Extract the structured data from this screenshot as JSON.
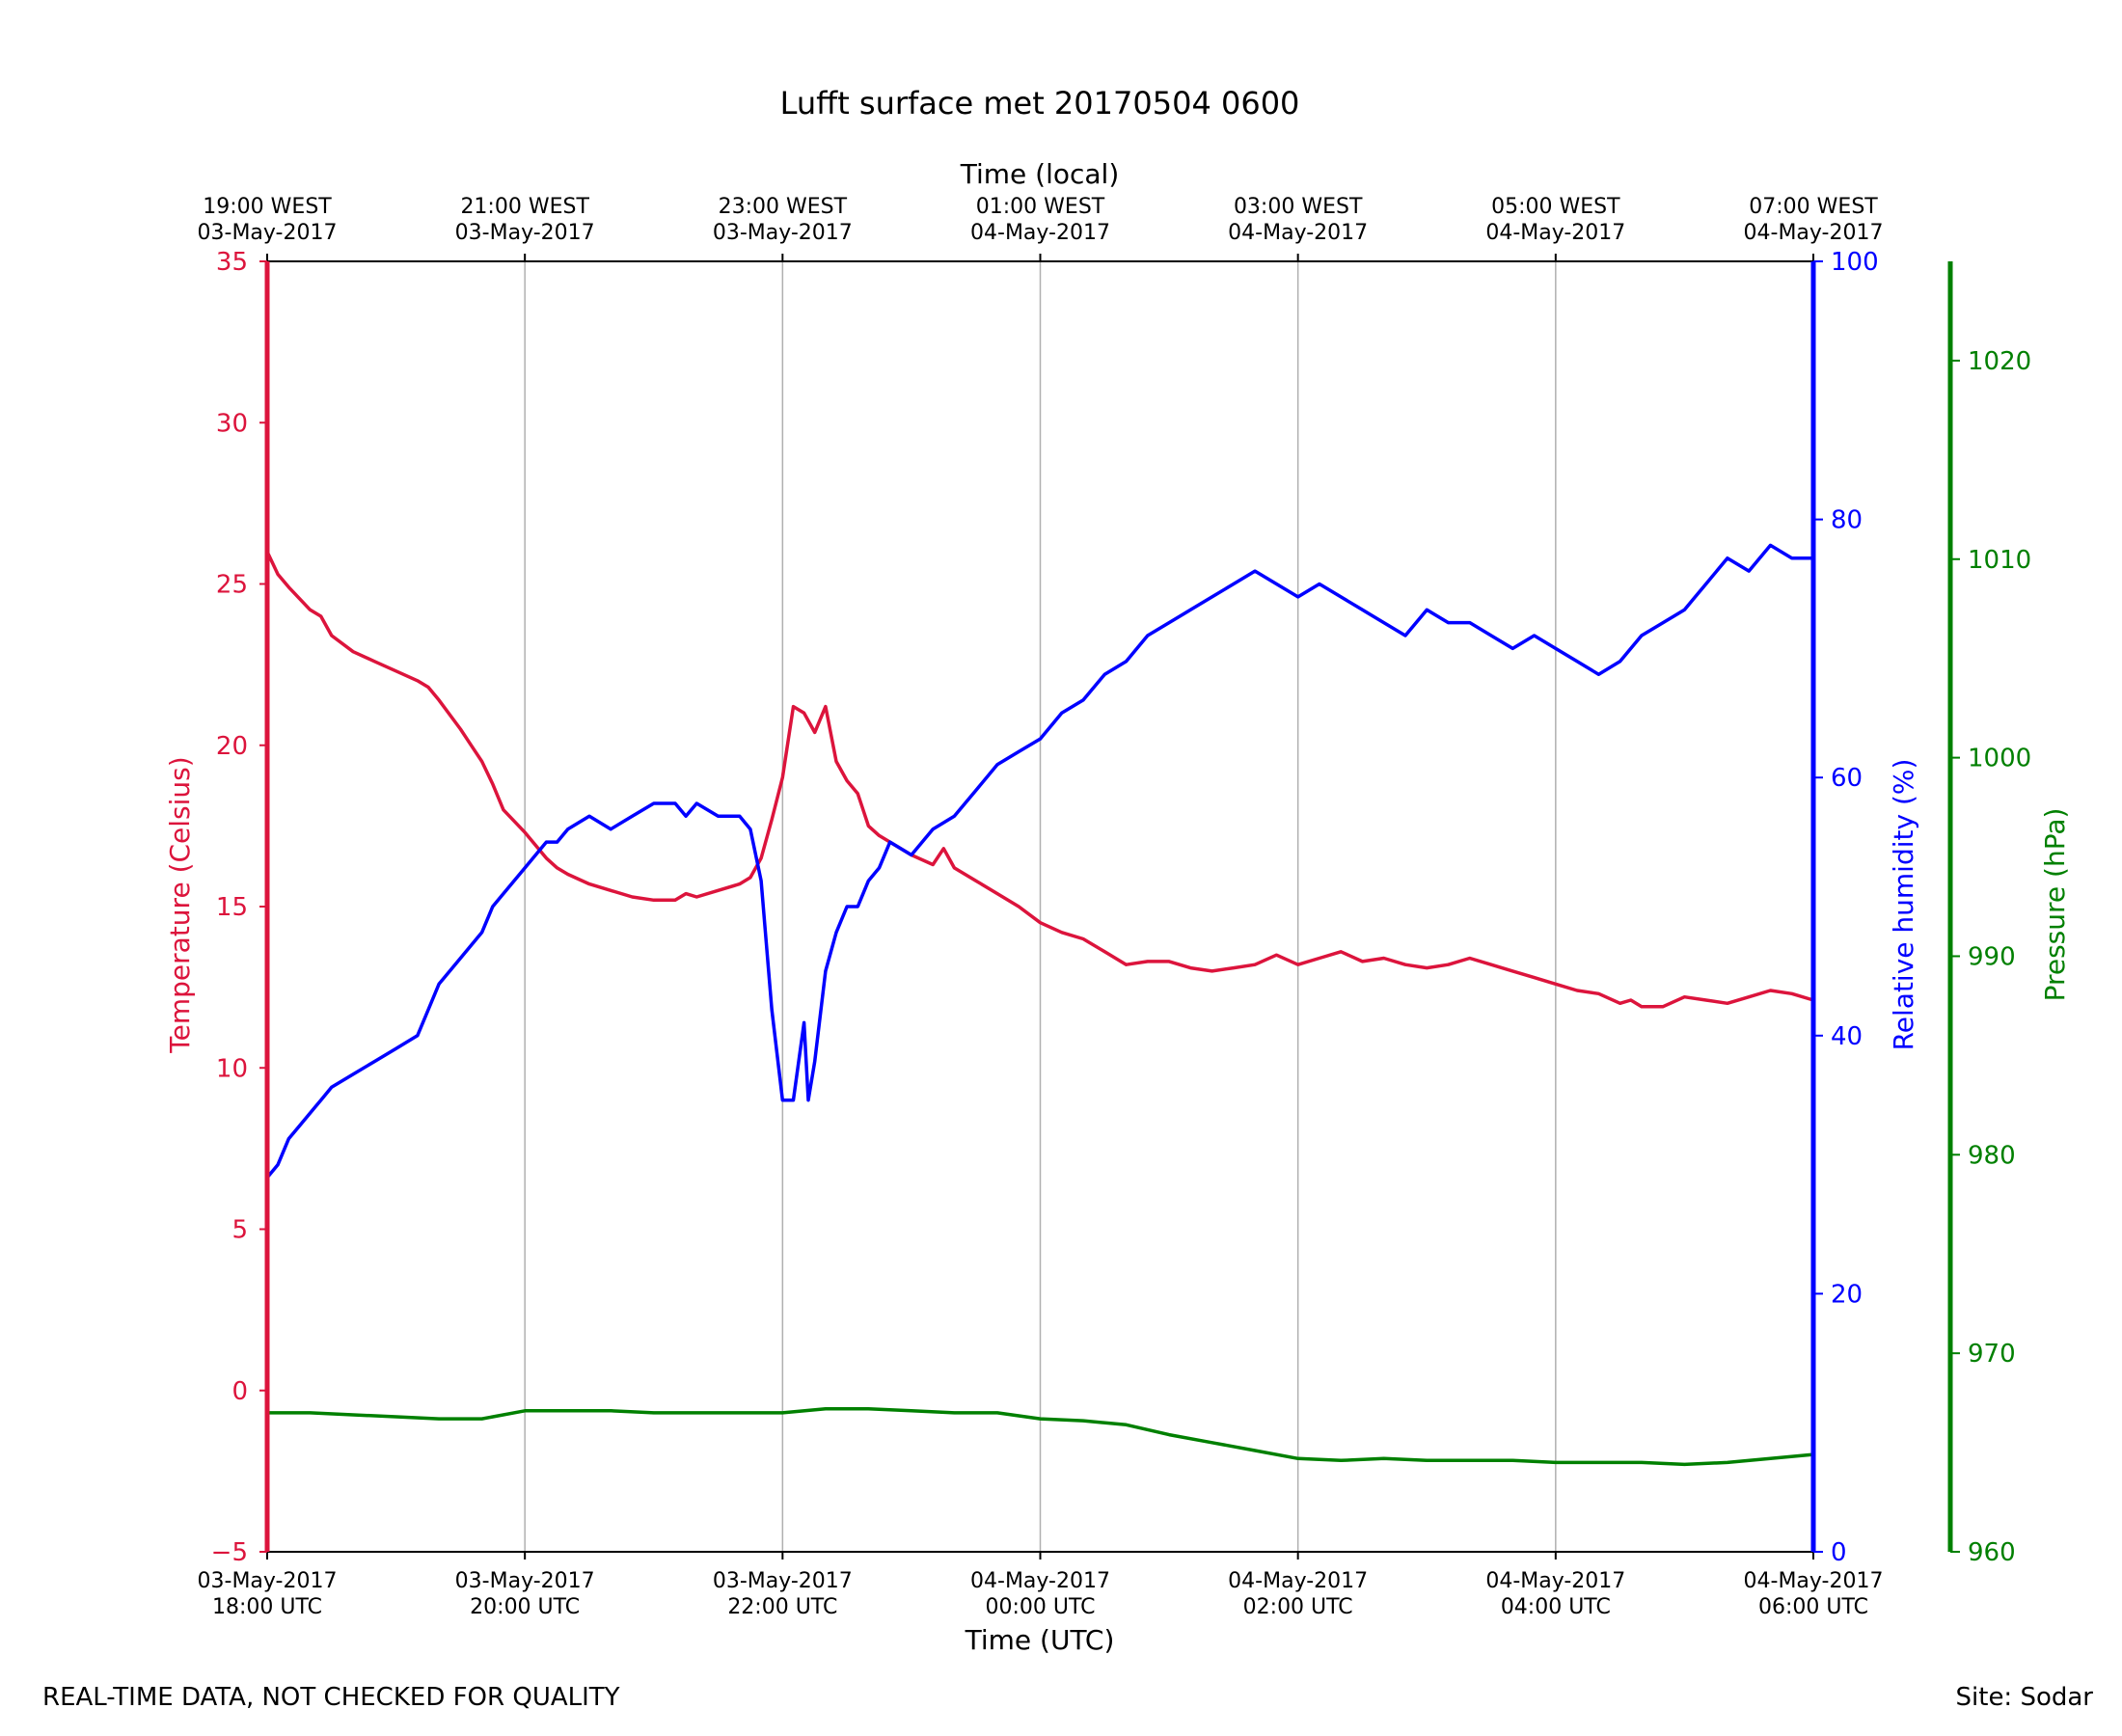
{
  "chart_data": {
    "type": "line",
    "title": "Lufft surface met 20170504 0600",
    "xlabel": "Time (UTC)",
    "xlabel_top": "Time (local)",
    "x_ticks_bottom": [
      {
        "line1": "03-May-2017",
        "line2": "18:00 UTC"
      },
      {
        "line1": "03-May-2017",
        "line2": "20:00 UTC"
      },
      {
        "line1": "03-May-2017",
        "line2": "22:00 UTC"
      },
      {
        "line1": "04-May-2017",
        "line2": "00:00 UTC"
      },
      {
        "line1": "04-May-2017",
        "line2": "02:00 UTC"
      },
      {
        "line1": "04-May-2017",
        "line2": "04:00 UTC"
      },
      {
        "line1": "04-May-2017",
        "line2": "06:00 UTC"
      }
    ],
    "x_ticks_top": [
      {
        "line1": "19:00 WEST",
        "line2": "03-May-2017"
      },
      {
        "line1": "21:00 WEST",
        "line2": "03-May-2017"
      },
      {
        "line1": "23:00 WEST",
        "line2": "03-May-2017"
      },
      {
        "line1": "01:00 WEST",
        "line2": "04-May-2017"
      },
      {
        "line1": "03:00 WEST",
        "line2": "04-May-2017"
      },
      {
        "line1": "05:00 WEST",
        "line2": "04-May-2017"
      },
      {
        "line1": "07:00 WEST",
        "line2": "04-May-2017"
      }
    ],
    "x_range_utc": [
      "2017-05-03 18:00",
      "2017-05-04 06:00"
    ],
    "grid": "vertical",
    "axes": {
      "temperature": {
        "label": "Temperature (Celsius)",
        "color": "#dc143c",
        "ylim": [
          -5,
          35
        ],
        "ticks": [
          -5,
          0,
          5,
          10,
          15,
          20,
          25,
          30,
          35
        ],
        "side": "left"
      },
      "humidity": {
        "label": "Relative humidity (%)",
        "color": "#0000ff",
        "ylim": [
          0,
          100
        ],
        "ticks": [
          0,
          20,
          40,
          60,
          80,
          100
        ],
        "side": "right"
      },
      "pressure": {
        "label": "Pressure (hPa)",
        "color": "#008000",
        "ylim": [
          960,
          1025
        ],
        "ticks": [
          960,
          970,
          980,
          990,
          1000,
          1010,
          1020
        ],
        "side": "right-outer"
      }
    },
    "series": [
      {
        "axis": "temperature",
        "color": "#dc143c",
        "x": [
          "18:00",
          "18:05",
          "18:10",
          "18:20",
          "18:25",
          "18:30",
          "18:40",
          "18:50",
          "19:00",
          "19:10",
          "19:15",
          "19:20",
          "19:30",
          "19:35",
          "19:40",
          "19:45",
          "19:50",
          "20:00",
          "20:10",
          "20:15",
          "20:20",
          "20:30",
          "20:40",
          "20:50",
          "21:00",
          "21:10",
          "21:15",
          "21:20",
          "21:30",
          "21:40",
          "21:45",
          "21:50",
          "21:55",
          "22:00",
          "22:05",
          "22:10",
          "22:15",
          "22:20",
          "22:25",
          "22:30",
          "22:35",
          "22:40",
          "22:45",
          "22:50",
          "23:00",
          "23:10",
          "23:15",
          "23:20",
          "23:30",
          "23:40",
          "23:50",
          "00:00",
          "00:10",
          "00:20",
          "00:30",
          "00:40",
          "00:50",
          "01:00",
          "01:10",
          "01:20",
          "01:30",
          "01:40",
          "01:50",
          "02:00",
          "02:10",
          "02:20",
          "02:30",
          "02:40",
          "02:50",
          "03:00",
          "03:10",
          "03:20",
          "03:30",
          "03:40",
          "03:50",
          "04:00",
          "04:10",
          "04:20",
          "04:30",
          "04:35",
          "04:40",
          "04:50",
          "05:00",
          "05:10",
          "05:20",
          "05:30",
          "05:40",
          "05:50",
          "06:00"
        ],
        "y": [
          26.0,
          25.3,
          24.9,
          24.2,
          24.0,
          23.4,
          22.9,
          22.6,
          22.3,
          22.0,
          21.8,
          21.4,
          20.5,
          20.0,
          19.5,
          18.8,
          18.0,
          17.3,
          16.5,
          16.2,
          16.0,
          15.7,
          15.5,
          15.3,
          15.2,
          15.2,
          15.4,
          15.3,
          15.5,
          15.7,
          15.9,
          16.5,
          17.7,
          19.0,
          21.2,
          21.0,
          20.4,
          21.2,
          19.5,
          18.9,
          18.5,
          17.5,
          17.2,
          17.0,
          16.6,
          16.3,
          16.8,
          16.2,
          15.8,
          15.4,
          15.0,
          14.5,
          14.2,
          14.0,
          13.6,
          13.2,
          13.3,
          13.3,
          13.1,
          13.0,
          13.1,
          13.2,
          13.5,
          13.2,
          13.4,
          13.6,
          13.3,
          13.4,
          13.2,
          13.1,
          13.2,
          13.4,
          13.2,
          13.0,
          12.8,
          12.6,
          12.4,
          12.3,
          12.0,
          12.1,
          11.9,
          11.9,
          12.2,
          12.1,
          12.0,
          12.2,
          12.4,
          12.3,
          12.1
        ]
      },
      {
        "axis": "humidity",
        "color": "#0000ff",
        "x": [
          "18:00",
          "18:05",
          "18:10",
          "18:15",
          "18:20",
          "18:25",
          "18:30",
          "18:40",
          "18:50",
          "19:00",
          "19:10",
          "19:15",
          "19:20",
          "19:30",
          "19:35",
          "19:40",
          "19:45",
          "19:50",
          "20:00",
          "20:10",
          "20:15",
          "20:20",
          "20:30",
          "20:40",
          "20:50",
          "21:00",
          "21:10",
          "21:15",
          "21:20",
          "21:30",
          "21:40",
          "21:45",
          "21:50",
          "21:55",
          "22:00",
          "22:03",
          "22:05",
          "22:10",
          "22:12",
          "22:15",
          "22:20",
          "22:25",
          "22:30",
          "22:35",
          "22:40",
          "22:45",
          "22:50",
          "23:00",
          "23:10",
          "23:20",
          "23:30",
          "23:40",
          "23:50",
          "00:00",
          "00:05",
          "00:10",
          "00:20",
          "00:30",
          "00:40",
          "00:50",
          "01:00",
          "01:10",
          "01:20",
          "01:30",
          "01:40",
          "01:50",
          "02:00",
          "02:10",
          "02:20",
          "02:30",
          "02:40",
          "02:50",
          "03:00",
          "03:10",
          "03:20",
          "03:30",
          "03:40",
          "03:50",
          "04:00",
          "04:10",
          "04:20",
          "04:30",
          "04:40",
          "04:50",
          "05:00",
          "05:05",
          "05:10",
          "05:20",
          "05:30",
          "05:40",
          "05:50",
          "06:00"
        ],
        "y": [
          29,
          30,
          32,
          33,
          34,
          35,
          36,
          37,
          38,
          39,
          40,
          42,
          44,
          46,
          47,
          48,
          50,
          51,
          53,
          55,
          55,
          56,
          57,
          56,
          57,
          58,
          58,
          57,
          58,
          57,
          57,
          56,
          52,
          42,
          35,
          35,
          35,
          41,
          35,
          38,
          45,
          48,
          50,
          50,
          52,
          53,
          55,
          54,
          56,
          57,
          59,
          61,
          62,
          63,
          64,
          65,
          66,
          68,
          69,
          71,
          72,
          73,
          74,
          75,
          76,
          75,
          74,
          75,
          74,
          73,
          72,
          71,
          73,
          72,
          72,
          71,
          70,
          71,
          70,
          69,
          68,
          69,
          71,
          72,
          73,
          74,
          75,
          77,
          76,
          78,
          77,
          77
        ]
      },
      {
        "axis": "pressure",
        "color": "#008000",
        "x": [
          "18:00",
          "18:20",
          "18:40",
          "19:00",
          "19:20",
          "19:40",
          "20:00",
          "20:20",
          "20:40",
          "21:00",
          "21:20",
          "21:40",
          "22:00",
          "22:20",
          "22:40",
          "23:00",
          "23:20",
          "23:40",
          "00:00",
          "00:20",
          "00:40",
          "01:00",
          "01:20",
          "01:40",
          "02:00",
          "02:20",
          "02:40",
          "03:00",
          "03:20",
          "03:40",
          "04:00",
          "04:20",
          "04:40",
          "05:00",
          "05:20",
          "05:40",
          "06:00"
        ],
        "y": [
          967.0,
          967.0,
          966.9,
          966.8,
          966.7,
          966.7,
          967.1,
          967.1,
          967.1,
          967.0,
          967.0,
          967.0,
          967.0,
          967.2,
          967.2,
          967.1,
          967.0,
          967.0,
          966.7,
          966.6,
          966.4,
          965.9,
          965.5,
          965.1,
          964.7,
          964.6,
          964.7,
          964.6,
          964.6,
          964.6,
          964.5,
          964.5,
          964.5,
          964.4,
          964.5,
          964.7,
          964.9
        ]
      }
    ]
  },
  "footer": {
    "left": "REAL-TIME DATA, NOT CHECKED FOR QUALITY",
    "right": "Site: Sodar"
  }
}
